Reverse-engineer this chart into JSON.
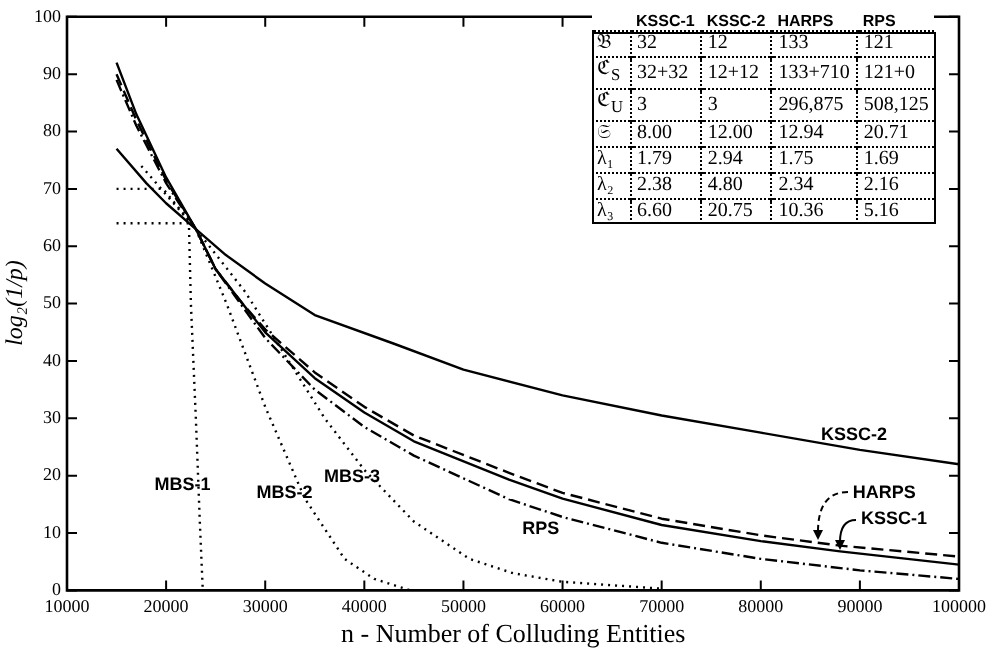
{
  "chart_data": {
    "type": "line",
    "xlabel": "n - Number of Colluding Entities",
    "ylabel": "log₂(1/p)",
    "xlim": [
      10000,
      100000
    ],
    "xticks": [
      10000,
      20000,
      30000,
      40000,
      50000,
      60000,
      70000,
      80000,
      90000,
      100000
    ],
    "ylim": [
      0,
      100
    ],
    "yticks": [
      0,
      10,
      20,
      30,
      40,
      50,
      60,
      70,
      80,
      90,
      100
    ],
    "grid": false,
    "legend": false,
    "marker": "none",
    "series": [
      {
        "color": "#000000",
        "line_style": "solid",
        "x": [
          15000,
          18000,
          20000,
          23000,
          26000,
          30000,
          35000,
          43000,
          50000,
          60000,
          70000,
          80000,
          90000,
          100000
        ],
        "values": [
          77,
          71,
          67.5,
          63,
          58.5,
          53.5,
          48,
          43,
          38.5,
          34,
          30.5,
          27.5,
          24.5,
          22
        ]
      },
      {
        "color": "#000000",
        "line_style": "solid",
        "x": [
          15000,
          17000,
          20000,
          23000,
          25000,
          27700,
          30000,
          35000,
          40000,
          45000,
          54600,
          60000,
          70000,
          80000,
          88000,
          100000
        ],
        "values": [
          92,
          83,
          72,
          63,
          56,
          50,
          45,
          37,
          31,
          26,
          19.3,
          16,
          11.4,
          8.6,
          6.8,
          4.5
        ]
      },
      {
        "color": "#000000",
        "line_style": "dashed",
        "x": [
          15000,
          17000,
          20000,
          23000,
          25000,
          27700,
          30000,
          35000,
          40000,
          45000,
          54600,
          60000,
          70000,
          80000,
          88000,
          100000
        ],
        "values": [
          90,
          82,
          71.5,
          63,
          56,
          50,
          45.5,
          38,
          32,
          27,
          20.5,
          17,
          12.5,
          9.6,
          7.8,
          5.9
        ]
      },
      {
        "color": "#000000",
        "line_style": "dashdot",
        "x": [
          15000,
          17000,
          20000,
          23000,
          25000,
          27700,
          30000,
          35000,
          40000,
          45000,
          54600,
          60000,
          70000,
          80000,
          90000,
          100000
        ],
        "values": [
          89,
          81,
          71,
          63,
          56,
          49.5,
          44,
          35,
          28.5,
          23.5,
          15.9,
          12.8,
          8.3,
          5.5,
          3.5,
          2
        ]
      },
      {
        "color": "#000000",
        "line_style": "dotted",
        "x": [
          15000,
          22300,
          22500,
          23000,
          23400,
          23700
        ],
        "values": [
          64,
          64,
          50,
          30,
          12,
          0
        ]
      },
      {
        "color": "#000000",
        "line_style": "dotted",
        "x": [
          15000,
          19700,
          23000,
          26100,
          30000,
          34000,
          38000,
          41000,
          44650
        ],
        "values": [
          70,
          70,
          63,
          50,
          32,
          16,
          5.5,
          2,
          0
        ]
      },
      {
        "color": "#000000",
        "line_style": "dotted",
        "x": [
          17500,
          20000,
          23000,
          28000,
          32000,
          36000,
          40000,
          45000,
          50600,
          55000,
          60000,
          70000
        ],
        "values": [
          74,
          69,
          63,
          52,
          41,
          30,
          21,
          12,
          5.5,
          3,
          1.5,
          0.3
        ]
      }
    ],
    "annotations": [
      {
        "text": "KSSC-2",
        "x": 89400,
        "y": 24.7
      },
      {
        "text": "HARPS",
        "x": 85800,
        "y": 8.3
      },
      {
        "text": "KSSC-1",
        "x": 88000,
        "y": 6.8
      },
      {
        "text": "RPS",
        "x": 57800,
        "y": 14.1
      },
      {
        "text": "MBS-1",
        "x": 23260,
        "y": 18.3
      },
      {
        "text": "MBS-2",
        "x": 33750,
        "y": 17
      },
      {
        "text": "MBS-3",
        "x": 40360,
        "y": 19.7
      },
      "KSSC-1",
      "KSSC-2",
      "HARPS",
      "RPS",
      "𝔅",
      "32",
      "12",
      "133",
      "121",
      "ℭ$_{S}$",
      "32+32",
      "12+12",
      "133+710",
      "121+0",
      "ℭ$_{U}$",
      "3",
      "3",
      "296,875",
      "508,125",
      "𝔖",
      "8.00",
      "12.00",
      "12.94",
      "20.71",
      "λ₁",
      "1.79",
      "2.94",
      "1.75",
      "1.69",
      "λ₂",
      "2.38",
      "4.80",
      "2.34",
      "2.16",
      "λ₃",
      "6.60",
      "20.75",
      "10.36",
      "5.16"
    ]
  }
}
